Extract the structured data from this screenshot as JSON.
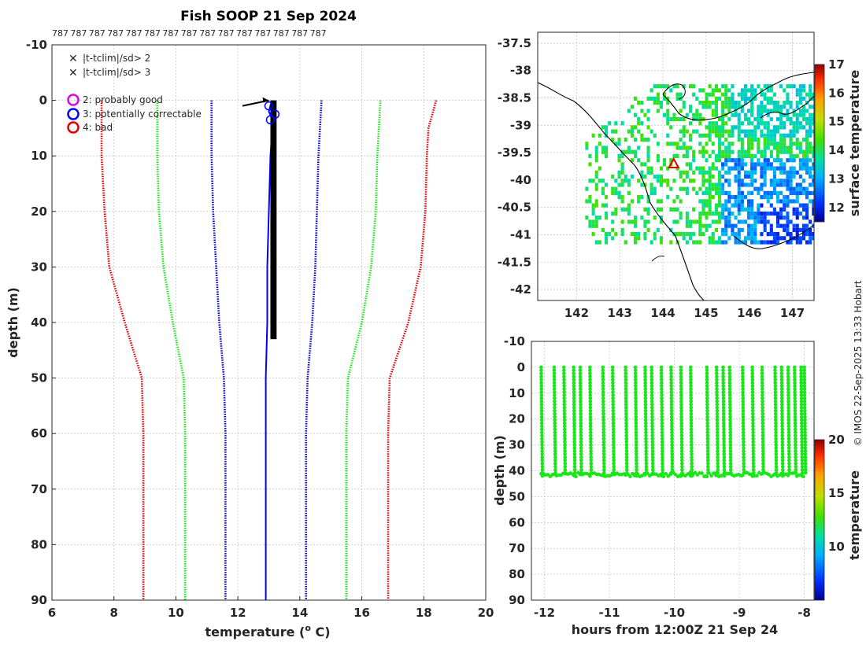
{
  "colors": {
    "green": "#19e619",
    "red": "#e00000",
    "blue": "#0000d0",
    "profile": "#0000ff",
    "black": "#000000",
    "magenta": "#e600e6"
  },
  "chart_data": [
    {
      "type": "line",
      "id": "profile",
      "title": "Fish SOOP 21 Sep 2024",
      "top_labels": [
        "787",
        "787",
        "787",
        "787",
        "787",
        "787",
        "787",
        "787",
        "787",
        "787",
        "787",
        "787",
        "787",
        "787",
        "787"
      ],
      "xlabel": "temperature (",
      "xlabel_sup": "o",
      "xlabel_end": " C)",
      "ylabel": "depth (m)",
      "xlim": [
        6,
        20
      ],
      "ylim": [
        -10,
        90
      ],
      "xticks": [
        6,
        8,
        10,
        12,
        14,
        16,
        18,
        20
      ],
      "yticks": [
        -10,
        0,
        10,
        20,
        30,
        40,
        50,
        60,
        70,
        80,
        90
      ],
      "climatology_series": [
        {
          "name": "mean",
          "color": "blue",
          "points": [
            [
              11.15,
              0
            ],
            [
              11.15,
              10
            ],
            [
              11.2,
              20
            ],
            [
              11.3,
              30
            ],
            [
              11.4,
              40
            ],
            [
              11.55,
              50
            ],
            [
              11.6,
              60
            ],
            [
              11.6,
              90
            ]
          ]
        },
        {
          "name": "mean-2sd",
          "color": "green",
          "points": [
            [
              9.4,
              0
            ],
            [
              9.4,
              10
            ],
            [
              9.45,
              20
            ],
            [
              9.6,
              30
            ],
            [
              9.9,
              40
            ],
            [
              10.25,
              50
            ],
            [
              10.3,
              60
            ],
            [
              10.3,
              90
            ]
          ]
        },
        {
          "name": "mean-3sd",
          "color": "red",
          "points": [
            [
              7.6,
              0
            ],
            [
              7.6,
              10
            ],
            [
              7.7,
              20
            ],
            [
              7.85,
              30
            ],
            [
              8.35,
              40
            ],
            [
              8.9,
              50
            ],
            [
              8.95,
              60
            ],
            [
              8.95,
              90
            ]
          ]
        },
        {
          "name": "mean+1sd",
          "color": "blue",
          "points": [
            [
              14.7,
              0
            ],
            [
              14.6,
              10
            ],
            [
              14.55,
              20
            ],
            [
              14.5,
              30
            ],
            [
              14.4,
              40
            ],
            [
              14.25,
              50
            ],
            [
              14.2,
              60
            ],
            [
              14.2,
              90
            ]
          ]
        },
        {
          "name": "mean+2sd",
          "color": "green",
          "points": [
            [
              16.6,
              0
            ],
            [
              16.5,
              10
            ],
            [
              16.45,
              20
            ],
            [
              16.3,
              30
            ],
            [
              16.0,
              40
            ],
            [
              15.55,
              50
            ],
            [
              15.5,
              60
            ],
            [
              15.5,
              90
            ]
          ]
        },
        {
          "name": "mean+3sd",
          "color": "red",
          "points": [
            [
              18.4,
              0
            ],
            [
              18.15,
              5
            ],
            [
              18.1,
              10
            ],
            [
              18.05,
              20
            ],
            [
              17.9,
              30
            ],
            [
              17.5,
              40
            ],
            [
              16.9,
              50
            ],
            [
              16.85,
              60
            ],
            [
              16.85,
              90
            ]
          ]
        }
      ],
      "observed": {
        "name": "observed",
        "color": "profile",
        "points": [
          [
            13.1,
            0
          ],
          [
            13.0,
            2
          ],
          [
            13.15,
            4
          ],
          [
            13.1,
            6
          ],
          [
            13.05,
            10
          ],
          [
            13.0,
            20
          ],
          [
            12.95,
            30
          ],
          [
            12.95,
            40
          ],
          [
            12.9,
            50
          ],
          [
            12.9,
            60
          ],
          [
            12.9,
            90
          ]
        ]
      },
      "black_band": {
        "x": [
          13.05,
          13.25
        ],
        "y": [
          0,
          43
        ]
      },
      "black_arrow": {
        "from": [
          12.15,
          1
        ],
        "to": [
          13.0,
          0
        ]
      },
      "legend": {
        "placement": "top-left",
        "qc_markers": [
          {
            "label": "|t-tclim|/sd> 2",
            "color": "green"
          },
          {
            "label": "|t-tclim|/sd> 3",
            "color": "red"
          }
        ],
        "flags": [
          {
            "label": "2: probably good",
            "color": "magenta"
          },
          {
            "label": "3: potentially correctable",
            "color": "blue"
          },
          {
            "label": "4: bad",
            "color": "red"
          }
        ]
      }
    },
    {
      "type": "heatmap",
      "id": "sst_map",
      "xlim": [
        141.1,
        147.5
      ],
      "ylim": [
        -42.2,
        -37.3
      ],
      "xticks": [
        142,
        143,
        144,
        145,
        146,
        147
      ],
      "yticks": [
        -37.5,
        -38,
        -38.5,
        -39,
        -39.5,
        -40,
        -40.5,
        -41,
        -41.5,
        -42
      ],
      "colorbar": {
        "label": "surface temperature",
        "range": [
          11.5,
          17
        ],
        "ticks": [
          12,
          13,
          14,
          15,
          16,
          17
        ]
      },
      "marker": {
        "lon": 144.25,
        "lat": -39.7,
        "shape": "triangle",
        "color": "red"
      }
    },
    {
      "type": "scatter",
      "id": "time_depth",
      "xlabel": "hours from 12:00Z 21 Sep 24",
      "ylabel": "depth (m)",
      "xlim": [
        -12.2,
        -7.85
      ],
      "ylim": [
        -10,
        90
      ],
      "xticks": [
        -12,
        -11,
        -10,
        -9,
        -8
      ],
      "yticks": [
        -10,
        0,
        10,
        20,
        30,
        40,
        50,
        60,
        70,
        80,
        90
      ],
      "colorbar": {
        "label": "temperature",
        "range": [
          5,
          20
        ],
        "ticks": [
          10,
          15,
          20
        ]
      },
      "profile_times": [
        -12.05,
        -11.85,
        -11.7,
        -11.55,
        -11.45,
        -11.3,
        -11.1,
        -10.95,
        -10.75,
        -10.6,
        -10.45,
        -10.35,
        -10.2,
        -10.05,
        -9.9,
        -9.75,
        -9.5,
        -9.35,
        -9.25,
        -9.15,
        -8.95,
        -8.8,
        -8.65,
        -8.45,
        -8.35,
        -8.25,
        -8.15,
        -8.05,
        -8.0
      ],
      "point_temperature": 13.1,
      "depth_range": [
        0,
        43
      ]
    }
  ],
  "copyright": "© IMOS 22-Sep-2025 13:33 Hobart"
}
